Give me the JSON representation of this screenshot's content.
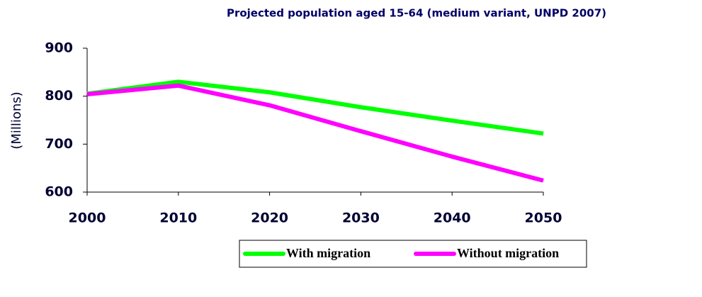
{
  "chart_data": {
    "type": "line",
    "title": "Projected population aged 15-64 (medium variant, UNPD 2007)",
    "y_label": "(Millions)",
    "x": [
      2000,
      2010,
      2020,
      2030,
      2040,
      2050
    ],
    "xlim": [
      2000,
      2050
    ],
    "xticks": [
      2000,
      2010,
      2020,
      2030,
      2040,
      2050
    ],
    "ylim": [
      600,
      900
    ],
    "yticks": [
      600,
      700,
      800,
      900
    ],
    "legend": "bottom",
    "series": [
      {
        "name": "With migration",
        "color": "#00ff00",
        "values": [
          805,
          830,
          808,
          777,
          749,
          722
        ]
      },
      {
        "name": "Without migration",
        "color": "#ff00ff",
        "values": [
          804,
          822,
          781,
          727,
          674,
          624
        ]
      }
    ]
  }
}
